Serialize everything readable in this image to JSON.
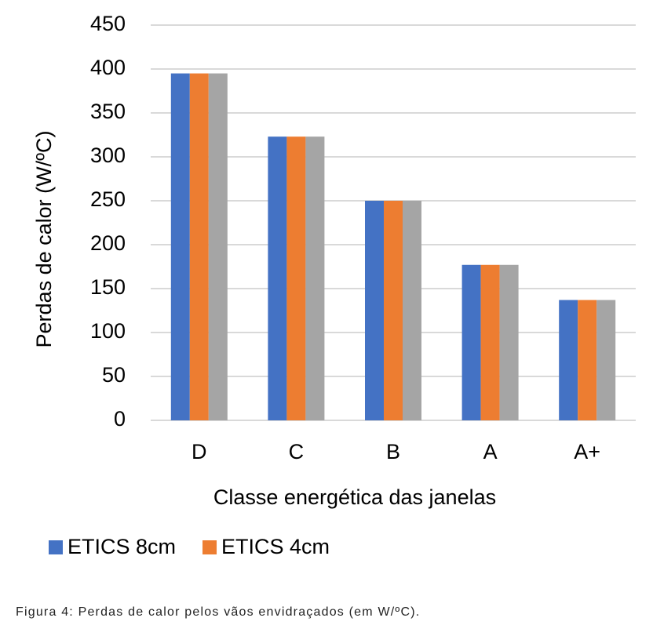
{
  "chart_data": {
    "type": "bar",
    "y_label": "Perdas de calor (W/ºC)",
    "x_label": "Classe energética das janelas",
    "categories": [
      "D",
      "C",
      "B",
      "A",
      "A+"
    ],
    "series": [
      {
        "name": "ETICS 8cm",
        "color": "#4472c4",
        "values": [
          395,
          323,
          250,
          177,
          137
        ]
      },
      {
        "name": "ETICS 4cm",
        "color": "#ed7d31",
        "values": [
          395,
          323,
          250,
          177,
          137
        ]
      },
      {
        "color": "#a5a5a5",
        "values": [
          395,
          323,
          250,
          177,
          137
        ]
      }
    ],
    "ylim": [
      0,
      450
    ],
    "yticks": [
      0,
      50,
      100,
      150,
      200,
      250,
      300,
      350,
      400,
      450
    ],
    "grid": true
  },
  "caption": "Figura 4: Perdas de calor pelos vãos envidraçados (em W/ºC)."
}
